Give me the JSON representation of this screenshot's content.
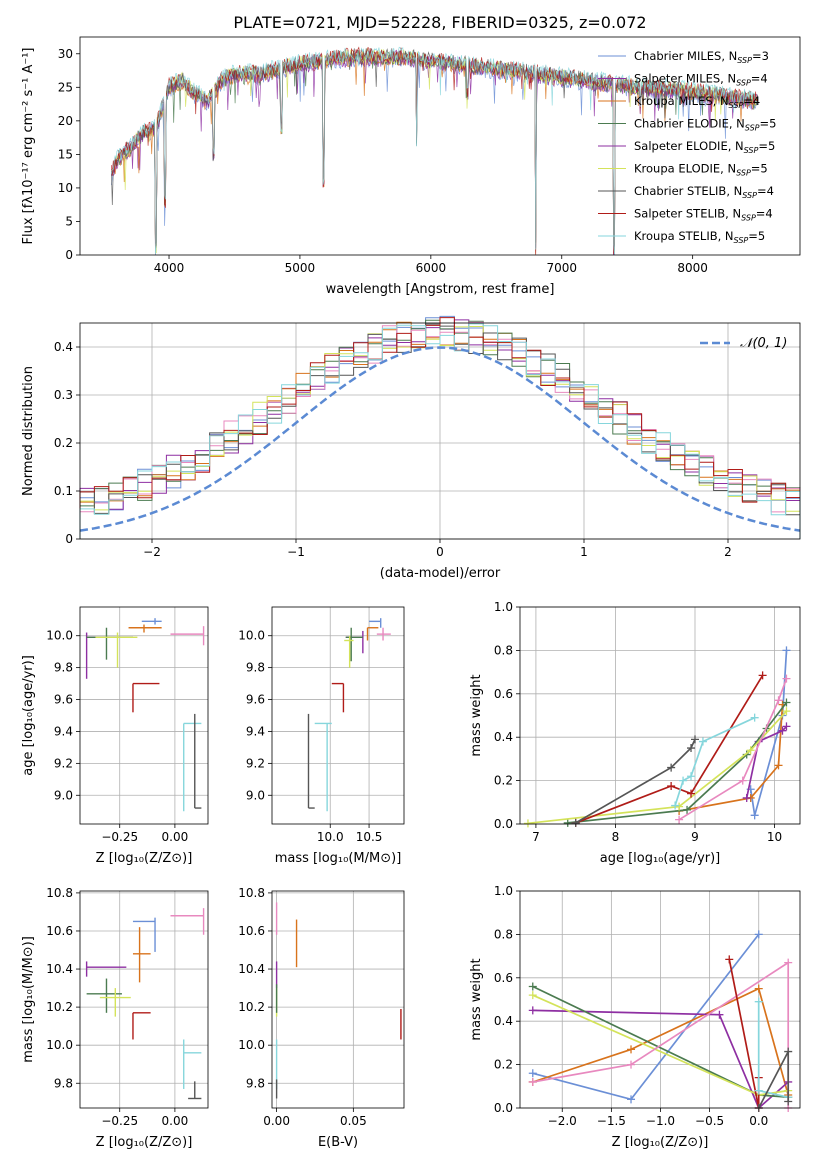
{
  "figure_title": "PLATE=0721, MJD=52228, FIBERID=0325, z=0.072",
  "colors": {
    "Chabrier MILES": "#6b8fd6",
    "Salpeter MILES": "#8e2fa2",
    "Kroupa MILES": "#d8731c",
    "Chabrier ELODIE": "#4b7b50",
    "Salpeter ELODIE": "#8e2fa2",
    "Kroupa ELODIE": "#d4e35a",
    "Chabrier STELIB": "#555555",
    "Salpeter STELIB": "#b01c18",
    "Kroupa STELIB": "#86d6dc",
    "pink": "#e889bf",
    "gaussian": "#5b8ad3"
  },
  "chart_data": [
    {
      "id": "spectrum",
      "type": "line",
      "xlabel": "wavelength [Angstrom, rest frame]",
      "ylabel": "Flux [fλ10⁻¹⁷ erg cm⁻² s⁻¹ A⁻¹]",
      "xlim": [
        3320,
        8820
      ],
      "ylim": [
        0,
        32.5
      ],
      "xticks": [
        4000,
        5000,
        6000,
        7000,
        8000
      ],
      "yticks": [
        0,
        5,
        10,
        15,
        20,
        25,
        30
      ],
      "grid": false,
      "legend_position": "top-right",
      "legend": [
        {
          "label": "Chabrier MILES, N",
          "sub": "SSP",
          "tail": "=3",
          "color": "#6b8fd6"
        },
        {
          "label": "Salpeter MILES, N",
          "sub": "SSP",
          "tail": "=4",
          "color": "#8e2fa2"
        },
        {
          "label": "Kroupa MILES, N",
          "sub": "SSP",
          "tail": "=4",
          "color": "#d8731c"
        },
        {
          "label": "Chabrier ELODIE, N",
          "sub": "SSP",
          "tail": "=5",
          "color": "#4b7b50"
        },
        {
          "label": "Salpeter ELODIE, N",
          "sub": "SSP",
          "tail": "=5",
          "color": "#8e2fa2"
        },
        {
          "label": "Kroupa ELODIE, N",
          "sub": "SSP",
          "tail": "=5",
          "color": "#d4e35a"
        },
        {
          "label": "Chabrier STELIB, N",
          "sub": "SSP",
          "tail": "=4",
          "color": "#555555"
        },
        {
          "label": "Salpeter STELIB, N",
          "sub": "SSP",
          "tail": "=4",
          "color": "#b01c18"
        },
        {
          "label": "Kroupa STELIB, N",
          "sub": "SSP",
          "tail": "=5",
          "color": "#86d6dc"
        }
      ],
      "spectrum_outline": {
        "wavelength": [
          3560,
          3600,
          3700,
          3800,
          3900,
          3950,
          4000,
          4100,
          4200,
          4300,
          4400,
          4500,
          4700,
          4900,
          5000,
          5200,
          5400,
          5600,
          5800,
          6000,
          6200,
          6400,
          6600,
          6800,
          7000,
          7200,
          7400,
          7600,
          7800,
          8000,
          8200,
          8400,
          8500
        ],
        "flux": [
          12,
          14,
          16,
          18,
          19,
          22,
          25,
          26,
          24,
          23,
          26,
          27,
          27,
          28,
          28.5,
          29,
          29.5,
          29.5,
          29.5,
          29,
          28.5,
          28,
          27.5,
          27,
          26.5,
          26,
          25.5,
          25,
          24.8,
          24.3,
          23.8,
          23.2,
          23
        ]
      },
      "dips": [
        {
          "x": 3900,
          "flux": 0
        },
        {
          "x": 3970,
          "flux": 7
        },
        {
          "x": 4340,
          "flux": 14
        },
        {
          "x": 4860,
          "flux": 18
        },
        {
          "x": 5180,
          "flux": 10
        },
        {
          "x": 5890,
          "flux": 16
        },
        {
          "x": 6280,
          "flux": 23
        },
        {
          "x": 6800,
          "flux": 0
        },
        {
          "x": 7400,
          "flux": 0
        },
        {
          "x": 7600,
          "flux": 21
        }
      ]
    },
    {
      "id": "residuals",
      "type": "histogram",
      "xlabel": "(data-model)/error",
      "ylabel": "Normed distribution",
      "xlim": [
        -2.5,
        2.5
      ],
      "ylim": [
        0,
        0.45
      ],
      "xticks": [
        -2,
        -1,
        0,
        1,
        2
      ],
      "yticks": [
        0.0,
        0.1,
        0.2,
        0.3,
        0.4
      ],
      "grid": true,
      "legend_position": "top-right",
      "gaussian_label": "𝒩(0, 1)",
      "bin_width": 0.1,
      "bin_start": -2.5,
      "bin_end": 2.5
    },
    {
      "id": "age_vs_Z",
      "type": "errorbar",
      "xlabel": "Z [log₁₀(Z/Z⊙)]",
      "ylabel": "age  [log₁₀(age/yr)]",
      "xlim": [
        -0.43,
        0.15
      ],
      "ylim": [
        8.82,
        10.18
      ],
      "xticks": [
        -0.25,
        0.0
      ],
      "xticklabels": [
        "−0.25",
        "0.00"
      ],
      "yticks": [
        9.0,
        9.2,
        9.4,
        9.6,
        9.8,
        10.0
      ],
      "yticklabels": [
        "9.0",
        "9.2",
        "9.4",
        "9.6",
        "9.8",
        "10.0"
      ],
      "grid": true,
      "points": [
        {
          "x": -0.09,
          "y": 10.09,
          "xlo": -0.15,
          "xhi": -0.06,
          "ylo": 10.07,
          "yhi": 10.11,
          "color": "#6b8fd6"
        },
        {
          "x": -0.14,
          "y": 10.05,
          "xlo": -0.21,
          "xhi": -0.06,
          "ylo": 10.02,
          "yhi": 10.07,
          "color": "#d8731c"
        },
        {
          "x": -0.4,
          "y": 9.99,
          "xlo": -0.4,
          "xhi": -0.19,
          "ylo": 9.73,
          "yhi": 10.02,
          "color": "#8e2fa2"
        },
        {
          "x": -0.31,
          "y": 9.99,
          "xlo": -0.4,
          "xhi": -0.19,
          "ylo": 9.85,
          "yhi": 10.05,
          "color": "#4b7b50"
        },
        {
          "x": -0.26,
          "y": 9.99,
          "xlo": -0.36,
          "xhi": -0.17,
          "ylo": 9.8,
          "yhi": 10.02,
          "color": "#d4e35a"
        },
        {
          "x": 0.13,
          "y": 10.01,
          "xlo": -0.02,
          "xhi": 0.13,
          "ylo": 9.94,
          "yhi": 10.06,
          "color": "#e889bf"
        },
        {
          "x": -0.19,
          "y": 9.7,
          "xlo": -0.19,
          "xhi": -0.07,
          "ylo": 9.52,
          "yhi": 9.7,
          "color": "#b01c18"
        },
        {
          "x": 0.04,
          "y": 9.45,
          "xlo": 0.04,
          "xhi": 0.12,
          "ylo": 8.9,
          "yhi": 9.45,
          "color": "#86d6dc"
        },
        {
          "x": 0.09,
          "y": 8.92,
          "xlo": 0.09,
          "xhi": 0.12,
          "ylo": 8.92,
          "yhi": 9.51,
          "color": "#555555"
        }
      ]
    },
    {
      "id": "age_vs_mass",
      "type": "errorbar",
      "xlabel": "mass [log₁₀(M/M⊙)]",
      "ylabel": "",
      "xlim": [
        9.25,
        10.95
      ],
      "ylim": [
        8.82,
        10.18
      ],
      "xticks": [
        10.0,
        10.5
      ],
      "xticklabels": [
        "10.0",
        "10.5"
      ],
      "yticks": [
        9.0,
        9.2,
        9.4,
        9.6,
        9.8,
        10.0
      ],
      "yticklabels": [
        "9.0",
        "9.2",
        "9.4",
        "9.6",
        "9.8",
        "10.0"
      ],
      "grid": true,
      "points": [
        {
          "x": 10.65,
          "y": 10.09,
          "xlo": 10.5,
          "xhi": 10.65,
          "ylo": 10.05,
          "yhi": 10.11,
          "color": "#6b8fd6"
        },
        {
          "x": 10.48,
          "y": 10.05,
          "xlo": 10.48,
          "xhi": 10.62,
          "ylo": 9.97,
          "yhi": 10.05,
          "color": "#d8731c"
        },
        {
          "x": 10.68,
          "y": 10.01,
          "xlo": 10.6,
          "xhi": 10.78,
          "ylo": 9.97,
          "yhi": 10.05,
          "color": "#e889bf"
        },
        {
          "x": 10.42,
          "y": 9.99,
          "xlo": 10.2,
          "xhi": 10.42,
          "ylo": 9.89,
          "yhi": 10.03,
          "color": "#8e2fa2"
        },
        {
          "x": 10.27,
          "y": 9.99,
          "xlo": 10.2,
          "xhi": 10.42,
          "ylo": 9.84,
          "yhi": 10.05,
          "color": "#4b7b50"
        },
        {
          "x": 10.25,
          "y": 9.97,
          "xlo": 10.18,
          "xhi": 10.3,
          "ylo": 9.8,
          "yhi": 10.0,
          "color": "#d4e35a"
        },
        {
          "x": 10.17,
          "y": 9.7,
          "xlo": 10.02,
          "xhi": 10.17,
          "ylo": 9.52,
          "yhi": 9.7,
          "color": "#b01c18"
        },
        {
          "x": 9.96,
          "y": 9.45,
          "xlo": 9.8,
          "xhi": 10.02,
          "ylo": 8.9,
          "yhi": 9.45,
          "color": "#86d6dc"
        },
        {
          "x": 9.72,
          "y": 8.92,
          "xlo": 9.72,
          "xhi": 9.8,
          "ylo": 8.92,
          "yhi": 9.51,
          "color": "#555555"
        }
      ]
    },
    {
      "id": "mass_weight_vs_age",
      "type": "line",
      "xlabel": "age  [log₁₀(age/yr)]",
      "ylabel": "mass weight",
      "xlim": [
        6.8,
        10.32
      ],
      "ylim": [
        0.0,
        1.0
      ],
      "xticks": [
        7,
        8,
        9,
        10
      ],
      "xticklabels": [
        "7",
        "8",
        "9",
        "10"
      ],
      "yticks": [
        0.0,
        0.2,
        0.4,
        0.6,
        0.8,
        1.0
      ],
      "yticklabels": [
        "0.0",
        "0.2",
        "0.4",
        "0.6",
        "0.8",
        "1.0"
      ],
      "grid": true,
      "series": [
        {
          "color": "#6b8fd6",
          "x": [
            9.7,
            9.75,
            10.1,
            10.15
          ],
          "y": [
            0.16,
            0.04,
            0.5,
            0.8
          ]
        },
        {
          "color": "#d8731c",
          "x": [
            8.8,
            9.7,
            10.05,
            10.1
          ],
          "y": [
            0.06,
            0.12,
            0.27,
            0.55
          ]
        },
        {
          "color": "#8e2fa2",
          "x": [
            9.65,
            9.8,
            10.1,
            10.15
          ],
          "y": [
            0.12,
            0.38,
            0.43,
            0.45
          ]
        },
        {
          "color": "#4b7b50",
          "x": [
            7.4,
            8.9,
            9.65,
            9.9,
            10.15
          ],
          "y": [
            0.005,
            0.065,
            0.32,
            0.44,
            0.56
          ]
        },
        {
          "color": "#d4e35a",
          "x": [
            6.9,
            8.8,
            9.7,
            10.15
          ],
          "y": [
            0.003,
            0.08,
            0.34,
            0.52
          ]
        },
        {
          "color": "#e889bf",
          "x": [
            8.8,
            9.6,
            10.05,
            10.15
          ],
          "y": [
            0.02,
            0.2,
            0.57,
            0.67
          ]
        },
        {
          "color": "#b01c18",
          "x": [
            7.5,
            8.7,
            8.95,
            9.85
          ],
          "y": [
            0.005,
            0.175,
            0.14,
            0.685
          ]
        },
        {
          "color": "#86d6dc",
          "x": [
            8.75,
            8.85,
            8.95,
            9.1,
            9.75
          ],
          "y": [
            0.085,
            0.2,
            0.22,
            0.38,
            0.49
          ]
        },
        {
          "color": "#555555",
          "x": [
            7.5,
            8.7,
            8.95,
            9.0
          ],
          "y": [
            0.005,
            0.26,
            0.35,
            0.39
          ]
        }
      ]
    },
    {
      "id": "mass_vs_Z",
      "type": "errorbar",
      "xlabel": "Z [log₁₀(Z/Z⊙)]",
      "ylabel": "mass [log₁₀(M/M⊙)]",
      "xlim": [
        -0.43,
        0.15
      ],
      "ylim": [
        9.67,
        10.81
      ],
      "xticks": [
        -0.25,
        0.0
      ],
      "xticklabels": [
        "−0.25",
        "0.00"
      ],
      "yticks": [
        9.8,
        10.0,
        10.2,
        10.4,
        10.6,
        10.8
      ],
      "yticklabels": [
        "9.8",
        "10.0",
        "10.2",
        "10.4",
        "10.6",
        "10.8"
      ],
      "grid": true,
      "points": [
        {
          "x": -0.09,
          "y": 10.65,
          "xlo": -0.19,
          "xhi": -0.09,
          "ylo": 10.49,
          "yhi": 10.67,
          "color": "#6b8fd6"
        },
        {
          "x": 0.13,
          "y": 10.68,
          "xlo": -0.02,
          "xhi": 0.13,
          "ylo": 10.58,
          "yhi": 10.72,
          "color": "#e889bf"
        },
        {
          "x": -0.16,
          "y": 10.48,
          "xlo": -0.19,
          "xhi": -0.11,
          "ylo": 10.33,
          "yhi": 10.62,
          "color": "#d8731c"
        },
        {
          "x": -0.4,
          "y": 10.41,
          "xlo": -0.4,
          "xhi": -0.22,
          "ylo": 10.36,
          "yhi": 10.44,
          "color": "#8e2fa2"
        },
        {
          "x": -0.31,
          "y": 10.27,
          "xlo": -0.4,
          "xhi": -0.24,
          "ylo": 10.17,
          "yhi": 10.35,
          "color": "#4b7b50"
        },
        {
          "x": -0.27,
          "y": 10.25,
          "xlo": -0.34,
          "xhi": -0.2,
          "ylo": 10.15,
          "yhi": 10.3,
          "color": "#d4e35a"
        },
        {
          "x": -0.19,
          "y": 10.17,
          "xlo": -0.19,
          "xhi": -0.11,
          "ylo": 10.03,
          "yhi": 10.17,
          "color": "#b01c18"
        },
        {
          "x": 0.04,
          "y": 9.96,
          "xlo": 0.04,
          "xhi": 0.12,
          "ylo": 9.77,
          "yhi": 10.03,
          "color": "#86d6dc"
        },
        {
          "x": 0.09,
          "y": 9.72,
          "xlo": 0.06,
          "xhi": 0.12,
          "ylo": 9.72,
          "yhi": 9.81,
          "color": "#555555"
        }
      ]
    },
    {
      "id": "mass_vs_EBV",
      "type": "errorbar",
      "xlabel": "E(B-V)",
      "ylabel": "",
      "xlim": [
        -0.003,
        0.083
      ],
      "ylim": [
        9.67,
        10.81
      ],
      "xticks": [
        0.0,
        0.05
      ],
      "xticklabels": [
        "0.00",
        "0.05"
      ],
      "yticks": [
        9.8,
        10.0,
        10.2,
        10.4,
        10.6,
        10.8
      ],
      "yticklabels": [
        "9.8",
        "10.0",
        "10.2",
        "10.4",
        "10.6",
        "10.8"
      ],
      "grid": true,
      "points": [
        {
          "x": 0.0,
          "y": 10.68,
          "xlo": 0.0,
          "xhi": 0.0,
          "ylo": 10.58,
          "yhi": 10.75,
          "color": "#e889bf"
        },
        {
          "x": 0.013,
          "y": 10.52,
          "xlo": 0.013,
          "xhi": 0.013,
          "ylo": 10.41,
          "yhi": 10.66,
          "color": "#d8731c"
        },
        {
          "x": 0.0,
          "y": 10.38,
          "xlo": 0.0,
          "xhi": 0.0,
          "ylo": 10.3,
          "yhi": 10.44,
          "color": "#8e2fa2"
        },
        {
          "x": 0.0,
          "y": 10.22,
          "xlo": 0.0,
          "xhi": 0.0,
          "ylo": 10.15,
          "yhi": 10.3,
          "color": "#d4e35a"
        },
        {
          "x": 0.0,
          "y": 10.25,
          "xlo": 0.0,
          "xhi": 0.0,
          "ylo": 10.17,
          "yhi": 10.32,
          "color": "#4b7b50"
        },
        {
          "x": 0.081,
          "y": 10.11,
          "xlo": 0.081,
          "xhi": 0.081,
          "ylo": 10.03,
          "yhi": 10.19,
          "color": "#b01c18"
        },
        {
          "x": 0.0,
          "y": 9.92,
          "xlo": 0.0,
          "xhi": 0.0,
          "ylo": 9.77,
          "yhi": 10.03,
          "color": "#86d6dc"
        },
        {
          "x": 0.0,
          "y": 9.73,
          "xlo": 0.0,
          "xhi": 0.0,
          "ylo": 9.72,
          "yhi": 9.82,
          "color": "#555555"
        }
      ]
    },
    {
      "id": "mass_weight_vs_Z",
      "type": "line",
      "xlabel": "Z [log₁₀(Z/Z⊙)]",
      "ylabel": "mass weight",
      "xlim": [
        -2.43,
        0.42
      ],
      "ylim": [
        0.0,
        1.0
      ],
      "xticks": [
        -2.0,
        -1.5,
        -1.0,
        -0.5,
        0.0
      ],
      "xticklabels": [
        "−2.0",
        "−1.5",
        "−1.0",
        "−0.5",
        "0.0"
      ],
      "yticks": [
        0.0,
        0.2,
        0.4,
        0.6,
        0.8,
        1.0
      ],
      "yticklabels": [
        "0.0",
        "0.2",
        "0.4",
        "0.6",
        "0.8",
        "1.0"
      ],
      "grid": true,
      "series": [
        {
          "color": "#6b8fd6",
          "x": [
            -2.3,
            -1.3,
            0.0
          ],
          "y": [
            0.16,
            0.04,
            0.8
          ]
        },
        {
          "color": "#d8731c",
          "x": [
            -2.3,
            -1.3,
            0.0,
            0.3
          ],
          "y": [
            0.12,
            0.27,
            0.55,
            0.06
          ]
        },
        {
          "color": "#8e2fa2",
          "x": [
            -2.3,
            -0.4,
            0.0,
            0.3
          ],
          "y": [
            0.45,
            0.43,
            0.0,
            0.12
          ]
        },
        {
          "color": "#4b7b50",
          "x": [
            -2.3,
            0.0,
            0.3
          ],
          "y": [
            0.56,
            0.06,
            0.05
          ]
        },
        {
          "color": "#d4e35a",
          "x": [
            -2.3,
            0.0,
            0.3
          ],
          "y": [
            0.52,
            0.06,
            0.08
          ]
        },
        {
          "color": "#e889bf",
          "x": [
            -2.3,
            -1.3,
            0.3,
            0.3
          ],
          "y": [
            0.12,
            0.2,
            0.67,
            0.0
          ]
        },
        {
          "color": "#b01c18",
          "x": [
            -0.3,
            0.0,
            0.0
          ],
          "y": [
            0.685,
            0.0,
            0.14
          ]
        },
        {
          "color": "#86d6dc",
          "x": [
            0.0,
            0.0,
            0.3
          ],
          "y": [
            0.49,
            0.08,
            0.05
          ]
        },
        {
          "color": "#555555",
          "x": [
            0.0,
            0.3,
            0.3
          ],
          "y": [
            0.0,
            0.26,
            0.03
          ]
        }
      ]
    }
  ]
}
